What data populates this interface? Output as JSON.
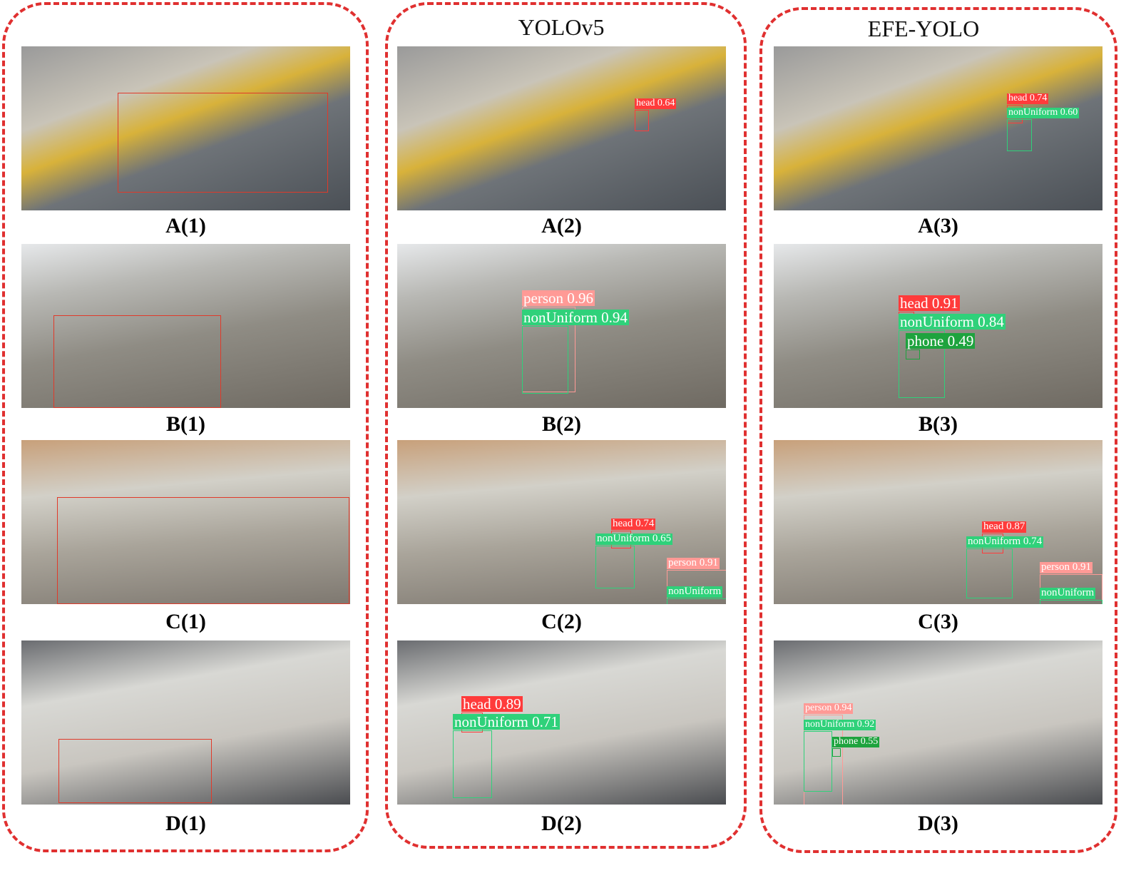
{
  "columns": [
    {
      "title": ""
    },
    {
      "title": "YOLOv5"
    },
    {
      "title": "EFE-YOLO"
    }
  ],
  "colors": {
    "panel_border": "#e03030",
    "head": "#ff3b3b",
    "person": "#ff9a96",
    "nonUniform": "#2fd17a",
    "phone": "#1ea33e"
  },
  "images": [
    {
      "caption": "A(1)",
      "detections": []
    },
    {
      "caption": "A(2)",
      "detections": [
        "head 0.64"
      ]
    },
    {
      "caption": "A(3)",
      "detections": [
        "head 0.74",
        "nonUniform 0.60"
      ]
    },
    {
      "caption": "B(1)",
      "detections": []
    },
    {
      "caption": "B(2)",
      "detections": [
        "person 0.96",
        "nonUniform 0.94"
      ]
    },
    {
      "caption": "B(3)",
      "detections": [
        "head 0.91",
        "nonUniform 0.84",
        "phone 0.49"
      ]
    },
    {
      "caption": "C(1)",
      "detections": []
    },
    {
      "caption": "C(2)",
      "detections": [
        "head 0.74",
        "nonUniform 0.65",
        "person 0.91",
        "nonUniform"
      ]
    },
    {
      "caption": "C(3)",
      "detections": [
        "head 0.87",
        "nonUniform 0.74",
        "person 0.91",
        "nonUniform"
      ]
    },
    {
      "caption": "D(1)",
      "detections": []
    },
    {
      "caption": "D(2)",
      "detections": [
        "head 0.89",
        "nonUniform 0.71"
      ]
    },
    {
      "caption": "D(3)",
      "detections": [
        "person 0.94",
        "nonUniform 0.92",
        "phone 0.55"
      ]
    }
  ]
}
